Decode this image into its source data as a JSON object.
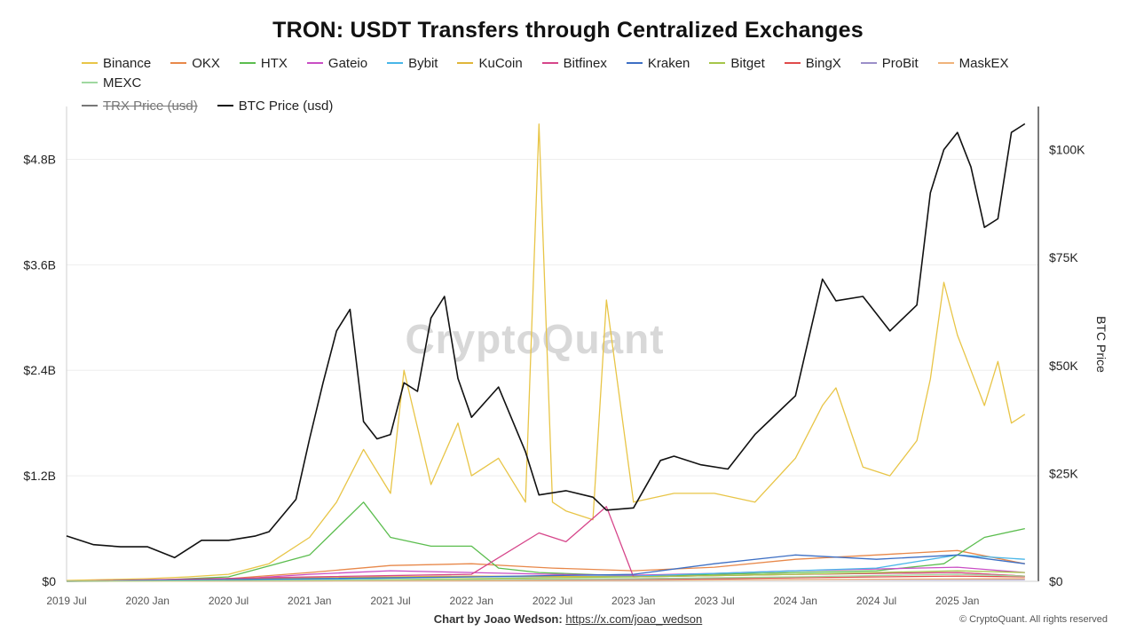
{
  "chart_data": {
    "type": "line",
    "title": "TRON: USDT Transfers through Centralized Exchanges",
    "watermark": "CryptoQuant",
    "y_left": {
      "range": [
        0,
        5.4
      ],
      "unit": "B USD",
      "ticks": [
        "$0",
        "$1.2B",
        "$2.4B",
        "$3.6B",
        "$4.8B"
      ],
      "tick_values": [
        0,
        1.2,
        2.4,
        3.6,
        4.8
      ]
    },
    "y_right": {
      "label": "BTC Price",
      "range": [
        0,
        110000
      ],
      "ticks": [
        "$0",
        "$25K",
        "$50K",
        "$75K",
        "$100K"
      ],
      "tick_values": [
        0,
        25000,
        50000,
        75000,
        100000
      ]
    },
    "x": {
      "start": "2019-07",
      "end": "2025-07",
      "ticks": [
        "2019 Jul",
        "2020 Jan",
        "2020 Jul",
        "2021 Jan",
        "2021 Jul",
        "2022 Jan",
        "2022 Jul",
        "2023 Jan",
        "2023 Jul",
        "2024 Jan",
        "2024 Jul",
        "2025 Jan"
      ]
    },
    "legend_position": "top",
    "grid": true,
    "series": [
      {
        "name": "Binance",
        "axis": "left",
        "color": "#e8c547",
        "hidden": false,
        "dates": [
          "2019-07",
          "2019-10",
          "2020-01",
          "2020-04",
          "2020-07",
          "2020-10",
          "2021-01",
          "2021-03",
          "2021-05",
          "2021-07",
          "2021-08",
          "2021-10",
          "2021-12",
          "2022-01",
          "2022-03",
          "2022-05",
          "2022-06",
          "2022-07",
          "2022-08",
          "2022-10",
          "2022-11",
          "2023-01",
          "2023-04",
          "2023-07",
          "2023-10",
          "2024-01",
          "2024-03",
          "2024-04",
          "2024-06",
          "2024-08",
          "2024-10",
          "2024-11",
          "2024-12",
          "2025-01",
          "2025-02",
          "2025-03",
          "2025-04",
          "2025-05",
          "2025-06"
        ],
        "values": [
          0.01,
          0.02,
          0.03,
          0.05,
          0.08,
          0.2,
          0.5,
          0.9,
          1.5,
          1.0,
          2.4,
          1.1,
          1.8,
          1.2,
          1.4,
          0.9,
          5.2,
          0.9,
          0.8,
          0.7,
          3.2,
          0.9,
          1.0,
          1.0,
          0.9,
          1.4,
          2.0,
          2.2,
          1.3,
          1.2,
          1.6,
          2.3,
          3.4,
          2.8,
          2.4,
          2.0,
          2.5,
          1.8,
          1.9
        ]
      },
      {
        "name": "OKX",
        "axis": "left",
        "color": "#e8884a",
        "hidden": false,
        "dates": [
          "2019-07",
          "2020-01",
          "2020-07",
          "2021-01",
          "2021-07",
          "2022-01",
          "2022-07",
          "2023-01",
          "2023-07",
          "2024-01",
          "2024-07",
          "2025-01",
          "2025-06"
        ],
        "values": [
          0.0,
          0.01,
          0.03,
          0.1,
          0.18,
          0.2,
          0.15,
          0.12,
          0.16,
          0.25,
          0.3,
          0.35,
          0.2
        ]
      },
      {
        "name": "HTX",
        "axis": "left",
        "color": "#5bbd4e",
        "hidden": false,
        "dates": [
          "2019-07",
          "2020-01",
          "2020-07",
          "2021-01",
          "2021-03",
          "2021-05",
          "2021-07",
          "2021-10",
          "2022-01",
          "2022-03",
          "2022-06",
          "2023-01",
          "2023-07",
          "2024-01",
          "2024-07",
          "2024-12",
          "2025-03",
          "2025-06"
        ],
        "values": [
          0.0,
          0.01,
          0.05,
          0.3,
          0.6,
          0.9,
          0.5,
          0.4,
          0.4,
          0.15,
          0.1,
          0.06,
          0.08,
          0.1,
          0.12,
          0.2,
          0.5,
          0.6
        ]
      },
      {
        "name": "Gateio",
        "axis": "left",
        "color": "#c94ec4",
        "hidden": false,
        "dates": [
          "2019-07",
          "2020-07",
          "2021-01",
          "2021-07",
          "2022-01",
          "2022-07",
          "2023-01",
          "2023-07",
          "2024-01",
          "2024-07",
          "2025-01",
          "2025-06"
        ],
        "values": [
          0.0,
          0.02,
          0.08,
          0.12,
          0.1,
          0.08,
          0.07,
          0.09,
          0.12,
          0.14,
          0.16,
          0.1
        ]
      },
      {
        "name": "Bybit",
        "axis": "left",
        "color": "#48b6e8",
        "hidden": false,
        "dates": [
          "2019-07",
          "2021-01",
          "2022-01",
          "2023-01",
          "2024-01",
          "2024-07",
          "2025-01",
          "2025-06"
        ],
        "values": [
          0.0,
          0.02,
          0.05,
          0.06,
          0.12,
          0.15,
          0.3,
          0.25
        ]
      },
      {
        "name": "KuCoin",
        "axis": "left",
        "color": "#e0b63a",
        "hidden": false,
        "dates": [
          "2019-07",
          "2021-01",
          "2022-01",
          "2023-01",
          "2024-01",
          "2025-01",
          "2025-06"
        ],
        "values": [
          0.0,
          0.04,
          0.06,
          0.05,
          0.08,
          0.1,
          0.06
        ]
      },
      {
        "name": "Bitfinex",
        "axis": "left",
        "color": "#d6458a",
        "hidden": false,
        "dates": [
          "2019-07",
          "2021-01",
          "2022-01",
          "2022-06",
          "2022-08",
          "2022-11",
          "2023-01",
          "2024-01",
          "2025-01",
          "2025-06"
        ],
        "values": [
          0.0,
          0.05,
          0.08,
          0.55,
          0.45,
          0.85,
          0.05,
          0.08,
          0.1,
          0.06
        ]
      },
      {
        "name": "Kraken",
        "axis": "left",
        "color": "#3d6fc4",
        "hidden": false,
        "dates": [
          "2019-07",
          "2021-01",
          "2022-01",
          "2023-01",
          "2023-07",
          "2024-01",
          "2024-07",
          "2025-01",
          "2025-06"
        ],
        "values": [
          0.0,
          0.03,
          0.05,
          0.08,
          0.2,
          0.3,
          0.25,
          0.3,
          0.2
        ]
      },
      {
        "name": "Bitget",
        "axis": "left",
        "color": "#a6c64a",
        "hidden": false,
        "dates": [
          "2019-07",
          "2021-01",
          "2022-01",
          "2023-01",
          "2024-01",
          "2025-01",
          "2025-06"
        ],
        "values": [
          0.0,
          0.01,
          0.03,
          0.05,
          0.08,
          0.12,
          0.1
        ]
      },
      {
        "name": "BingX",
        "axis": "left",
        "color": "#e04b4b",
        "hidden": false,
        "dates": [
          "2019-07",
          "2022-01",
          "2023-01",
          "2024-01",
          "2025-01",
          "2025-06"
        ],
        "values": [
          0.0,
          0.01,
          0.02,
          0.04,
          0.06,
          0.05
        ]
      },
      {
        "name": "ProBit",
        "axis": "left",
        "color": "#9b8fc9",
        "hidden": false,
        "dates": [
          "2019-07",
          "2022-01",
          "2024-01",
          "2025-06"
        ],
        "values": [
          0.0,
          0.01,
          0.02,
          0.02
        ]
      },
      {
        "name": "MaskEX",
        "axis": "left",
        "color": "#f0b37a",
        "hidden": false,
        "dates": [
          "2019-07",
          "2023-01",
          "2024-01",
          "2025-06"
        ],
        "values": [
          0.0,
          0.01,
          0.02,
          0.03
        ]
      },
      {
        "name": "MEXC",
        "axis": "left",
        "color": "#9fd8a0",
        "hidden": false,
        "dates": [
          "2019-07",
          "2022-01",
          "2023-01",
          "2024-01",
          "2025-01",
          "2025-06"
        ],
        "values": [
          0.0,
          0.02,
          0.03,
          0.05,
          0.08,
          0.06
        ]
      },
      {
        "name": "TRX Price (usd)",
        "axis": "right",
        "color": "#777777",
        "hidden": true,
        "dates": [],
        "values": []
      },
      {
        "name": "BTC Price (usd)",
        "axis": "right",
        "color": "#111111",
        "hidden": false,
        "dates": [
          "2019-07",
          "2019-09",
          "2019-11",
          "2020-01",
          "2020-03",
          "2020-05",
          "2020-07",
          "2020-09",
          "2020-10",
          "2020-12",
          "2021-01",
          "2021-02",
          "2021-03",
          "2021-04",
          "2021-05",
          "2021-06",
          "2021-07",
          "2021-08",
          "2021-09",
          "2021-10",
          "2021-11",
          "2021-12",
          "2022-01",
          "2022-03",
          "2022-05",
          "2022-06",
          "2022-08",
          "2022-10",
          "2022-11",
          "2023-01",
          "2023-03",
          "2023-04",
          "2023-06",
          "2023-08",
          "2023-10",
          "2023-11",
          "2024-01",
          "2024-03",
          "2024-04",
          "2024-06",
          "2024-08",
          "2024-10",
          "2024-11",
          "2024-12",
          "2025-01",
          "2025-02",
          "2025-03",
          "2025-04",
          "2025-05",
          "2025-06"
        ],
        "values": [
          10500,
          8500,
          8000,
          8000,
          5500,
          9500,
          9500,
          10500,
          11500,
          19000,
          33000,
          46000,
          58000,
          63000,
          37000,
          33000,
          34000,
          46000,
          44000,
          61000,
          66000,
          47000,
          38000,
          45000,
          30000,
          20000,
          21000,
          19500,
          16500,
          17000,
          28000,
          29000,
          27000,
          26000,
          34000,
          37000,
          43000,
          70000,
          65000,
          66000,
          58000,
          64000,
          90000,
          100000,
          104000,
          96000,
          82000,
          84000,
          104000,
          106000
        ]
      }
    ]
  },
  "footer": {
    "prefix": "Chart by Joao Wedson:",
    "link": "https://x.com/joao_wedson",
    "copyright": "© CryptoQuant. All rights reserved"
  }
}
